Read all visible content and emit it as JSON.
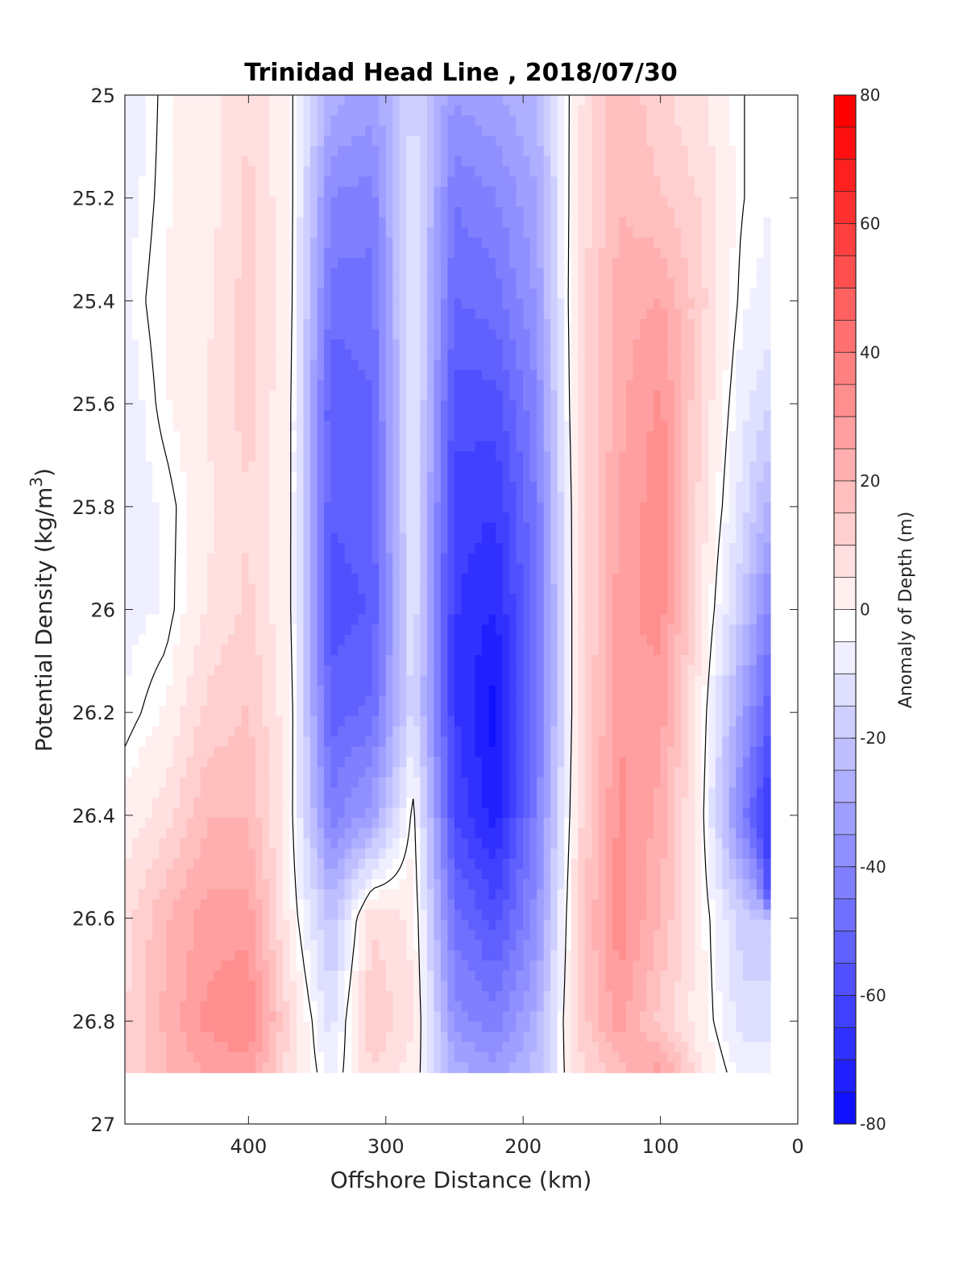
{
  "chart_data": {
    "type": "heatmap",
    "title": "Trinidad Head Line , 2018/07/30",
    "xlabel": "Offshore Distance (km)",
    "ylabel_main": "Potential Density (kg/m",
    "ylabel_sup": "3",
    "ylabel_close": ")",
    "colorbar_label": "Anomaly of Depth (m)",
    "x_axis": {
      "range": [
        490,
        0
      ],
      "reversed": true,
      "ticks": [
        400,
        300,
        200,
        100,
        0
      ],
      "tick_labels": [
        "400",
        "300",
        "200",
        "100",
        "0"
      ]
    },
    "y_axis": {
      "range": [
        25,
        27
      ],
      "inverted": true,
      "ticks": [
        25,
        25.2,
        25.4,
        25.6,
        25.8,
        26,
        26.2,
        26.4,
        26.6,
        26.8,
        27
      ],
      "tick_labels": [
        "25",
        "25.2",
        "25.4",
        "25.6",
        "25.8",
        "26",
        "26.2",
        "26.4",
        "26.6",
        "26.8",
        "27"
      ]
    },
    "colorbar": {
      "range": [
        -80,
        80
      ],
      "ticks": [
        80,
        60,
        40,
        20,
        0,
        -20,
        -40,
        -60,
        -80
      ],
      "tick_labels": [
        "80",
        "60",
        "40",
        "20",
        "0",
        "-20",
        "-40",
        "-60",
        "-80"
      ],
      "step": 5,
      "high_color": "#ff0000",
      "mid_color": "#ffffff",
      "low_color": "#0000ff"
    },
    "data_extent": {
      "x_min": 20,
      "x_max": 490,
      "y_max": 26.9
    },
    "x": [
      490,
      460,
      430,
      400,
      370,
      340,
      310,
      280,
      250,
      220,
      190,
      160,
      130,
      100,
      70,
      40,
      20
    ],
    "y": [
      25,
      25.2,
      25.4,
      25.6,
      25.8,
      26,
      26.2,
      26.4,
      26.6,
      26.8,
      26.9
    ],
    "z": [
      [
        -8,
        2,
        6,
        12,
        2,
        -25,
        -30,
        -12,
        -32,
        -28,
        -22,
        6,
        22,
        14,
        8,
        0,
        null
      ],
      [
        -5,
        2,
        5,
        14,
        3,
        -38,
        -40,
        -8,
        -42,
        -38,
        -28,
        8,
        22,
        18,
        12,
        0,
        null
      ],
      [
        -3,
        3,
        6,
        15,
        3,
        -45,
        -45,
        -6,
        -48,
        -45,
        -32,
        10,
        25,
        28,
        14,
        -2,
        -4
      ],
      [
        -6,
        2,
        8,
        15,
        2,
        -52,
        -48,
        -5,
        -55,
        -55,
        -38,
        10,
        26,
        34,
        12,
        -6,
        -12
      ],
      [
        -5,
        -2,
        6,
        12,
        2,
        -52,
        -50,
        -6,
        -60,
        -62,
        -42,
        8,
        28,
        36,
        10,
        -10,
        -25
      ],
      [
        -4,
        -2,
        8,
        14,
        2,
        -55,
        -52,
        -8,
        -62,
        -68,
        -45,
        8,
        30,
        35,
        8,
        -18,
        -40
      ],
      [
        -2,
        3,
        14,
        18,
        4,
        -50,
        -46,
        -10,
        -62,
        -75,
        -45,
        8,
        32,
        30,
        4,
        -30,
        -52
      ],
      [
        4,
        10,
        22,
        22,
        3,
        -40,
        -30,
        2,
        -58,
        -70,
        -40,
        10,
        34,
        26,
        2,
        -40,
        -65
      ],
      [
        10,
        22,
        30,
        30,
        5,
        -20,
        12,
        6,
        -45,
        -55,
        -35,
        14,
        36,
        22,
        4,
        -16,
        null
      ],
      [
        12,
        24,
        34,
        38,
        12,
        -10,
        18,
        8,
        -35,
        -40,
        -25,
        14,
        30,
        16,
        4,
        -10,
        null
      ],
      [
        14,
        22,
        28,
        30,
        10,
        -5,
        12,
        5,
        -25,
        -30,
        -20,
        10,
        20,
        30,
        8,
        -5,
        null
      ]
    ]
  }
}
